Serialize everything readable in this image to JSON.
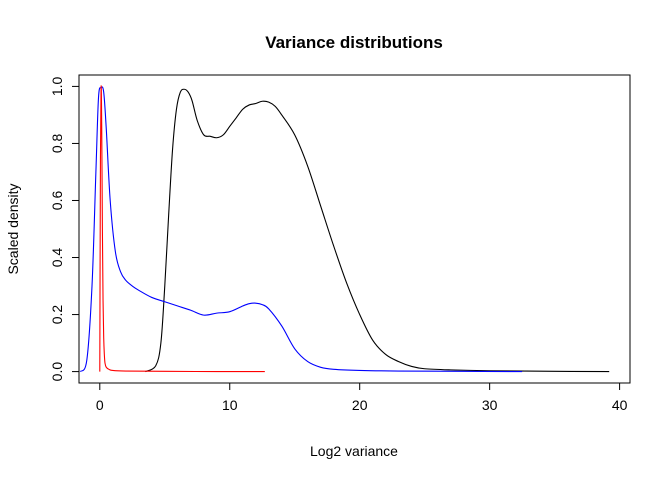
{
  "chart_data": {
    "type": "line",
    "title": "Variance distributions",
    "xlabel": "Log2 variance",
    "ylabel": "Scaled density",
    "xlim": [
      -1.6,
      40.8
    ],
    "ylim": [
      -0.04,
      1.04
    ],
    "xticks": [
      0,
      10,
      20,
      30,
      40
    ],
    "yticks": [
      0.0,
      0.2,
      0.4,
      0.6,
      0.8,
      1.0
    ],
    "xtick_labels": [
      "0",
      "10",
      "20",
      "30",
      "40"
    ],
    "ytick_labels": [
      "0.0",
      "0.2",
      "0.4",
      "0.6",
      "0.8",
      "1.0"
    ],
    "grid": false,
    "legend": "none",
    "series": [
      {
        "color": "#000000",
        "x": [
          3.5,
          4.3,
          4.7,
          5.0,
          5.3,
          5.6,
          5.9,
          6.2,
          6.5,
          6.8,
          7.1,
          7.5,
          8.0,
          8.5,
          9.0,
          9.5,
          10.0,
          10.5,
          11.0,
          11.5,
          12.0,
          12.5,
          13.0,
          13.5,
          14.0,
          15.0,
          16.0,
          17.0,
          18.0,
          19.0,
          20.0,
          21.0,
          22.0,
          23.0,
          24.0,
          25.0,
          27.0,
          30.0,
          35.0,
          39.2
        ],
        "y": [
          0.0,
          0.02,
          0.1,
          0.3,
          0.55,
          0.78,
          0.92,
          0.98,
          0.99,
          0.98,
          0.95,
          0.88,
          0.83,
          0.825,
          0.82,
          0.83,
          0.86,
          0.89,
          0.92,
          0.935,
          0.94,
          0.948,
          0.945,
          0.93,
          0.9,
          0.83,
          0.72,
          0.58,
          0.44,
          0.31,
          0.2,
          0.11,
          0.06,
          0.035,
          0.018,
          0.01,
          0.006,
          0.003,
          0.001,
          0.0
        ]
      },
      {
        "color": "#0000ff",
        "x": [
          -1.5,
          -1.0,
          -0.6,
          -0.3,
          -0.1,
          0.1,
          0.3,
          0.5,
          0.8,
          1.2,
          1.6,
          2.0,
          2.5,
          3.0,
          4.0,
          5.0,
          6.0,
          7.0,
          8.0,
          9.0,
          10.0,
          11.0,
          11.5,
          12.0,
          12.5,
          13.0,
          14.0,
          15.0,
          16.0,
          17.0,
          18.0,
          20.0,
          23.0,
          28.0,
          32.5
        ],
        "y": [
          0.0,
          0.04,
          0.3,
          0.7,
          0.96,
          0.995,
          0.98,
          0.85,
          0.6,
          0.42,
          0.35,
          0.32,
          0.3,
          0.285,
          0.26,
          0.245,
          0.23,
          0.215,
          0.198,
          0.205,
          0.21,
          0.23,
          0.238,
          0.24,
          0.235,
          0.22,
          0.16,
          0.08,
          0.035,
          0.015,
          0.008,
          0.004,
          0.002,
          0.001,
          0.0
        ]
      },
      {
        "color": "#ff0000",
        "x": [
          0.0,
          0.05,
          0.1,
          0.15,
          0.2,
          0.25,
          0.3,
          0.35,
          0.4,
          0.5,
          0.7,
          1.0,
          2.0,
          5.0,
          9.0,
          12.7
        ],
        "y": [
          0.0,
          0.75,
          1.0,
          0.85,
          0.5,
          0.25,
          0.12,
          0.06,
          0.03,
          0.015,
          0.008,
          0.004,
          0.002,
          0.001,
          0.0,
          0.0
        ]
      }
    ]
  }
}
